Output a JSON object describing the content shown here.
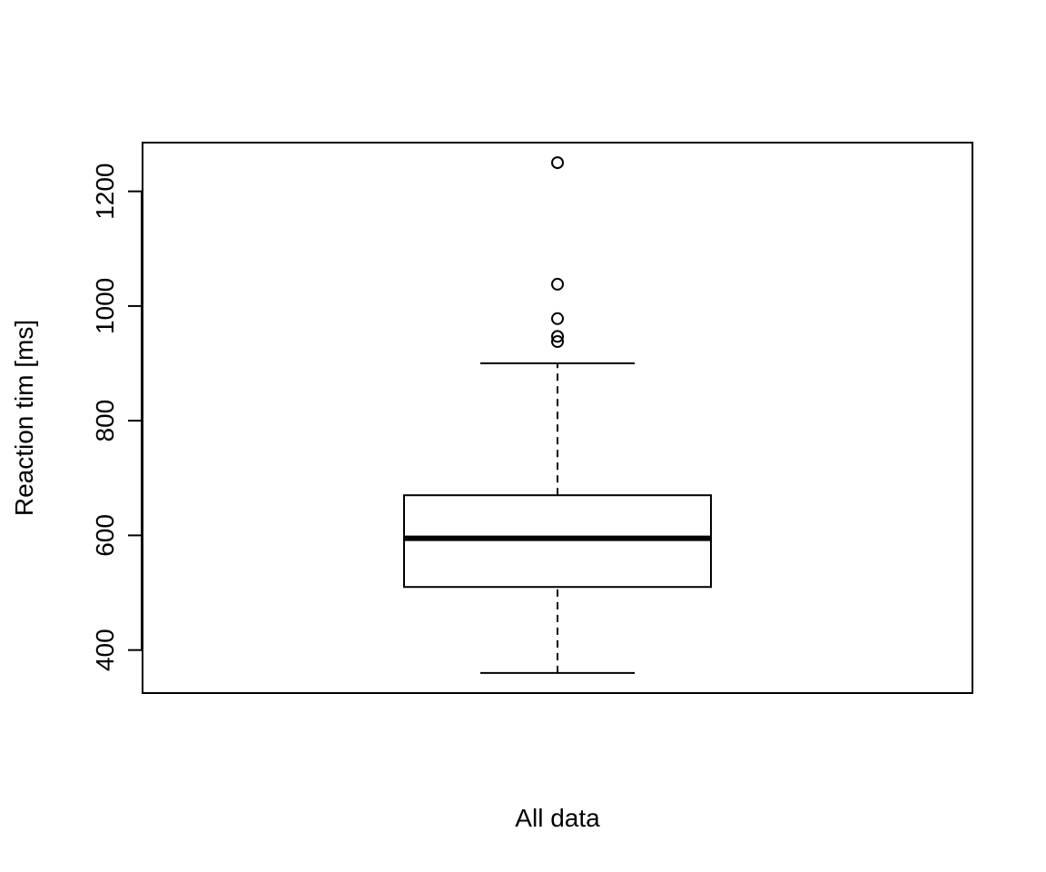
{
  "chart_data": {
    "type": "boxplot",
    "title": "",
    "xlabel": "All data",
    "ylabel": "Reaction tim [ms]",
    "ylim": [
      325,
      1285
    ],
    "yticks": [
      400,
      600,
      800,
      1000,
      1200
    ],
    "grid": false,
    "legend": "none",
    "box": {
      "whisker_low": 360,
      "q1": 510,
      "median": 595,
      "q3": 670,
      "whisker_high": 900
    },
    "outliers": [
      938,
      947,
      978,
      1038,
      1250
    ],
    "colors": {
      "stroke": "#000000",
      "background": "#ffffff"
    }
  }
}
